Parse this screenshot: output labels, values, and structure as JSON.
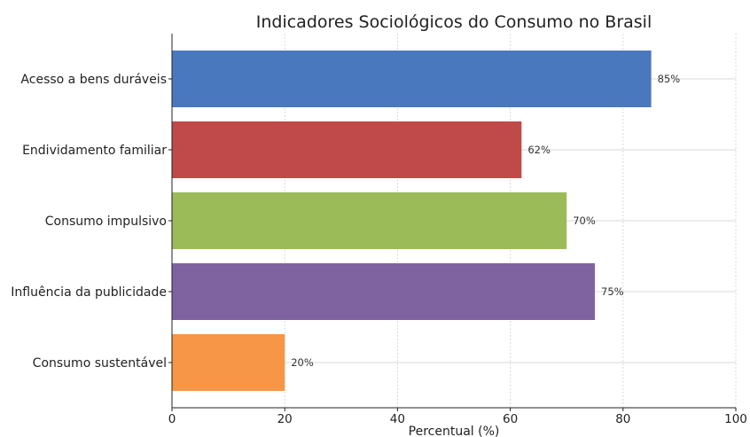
{
  "chart_data": {
    "type": "bar",
    "orientation": "horizontal",
    "title": "Indicadores Sociológicos do Consumo no Brasil",
    "xlabel": "Percentual (%)",
    "ylabel": "",
    "xlim": [
      0,
      100
    ],
    "xticks": [
      0,
      20,
      40,
      60,
      80,
      100
    ],
    "grid": true,
    "categories": [
      "Acesso a bens duráveis",
      "Endividamento familiar",
      "Consumo impulsivo",
      "Influência da publicidade",
      "Consumo sustentável"
    ],
    "values": [
      85,
      62,
      70,
      75,
      20
    ],
    "data_labels": [
      "85%",
      "62%",
      "70%",
      "75%",
      "20%"
    ],
    "colors": [
      "#4a78bf",
      "#c04a4a",
      "#9bbb59",
      "#7f63a1",
      "#f79646"
    ]
  }
}
